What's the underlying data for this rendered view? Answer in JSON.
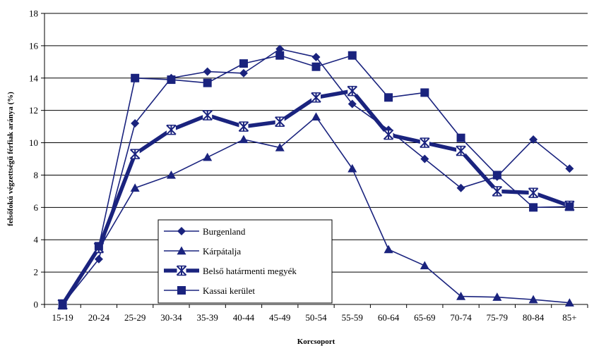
{
  "chart_data": {
    "type": "line",
    "title": "",
    "xlabel": "Korcsoport",
    "ylabel": "felsőfokú végzettségű férfiak aránya (%)",
    "ylim": [
      0,
      18
    ],
    "yticks": [
      0,
      2,
      4,
      6,
      8,
      10,
      12,
      14,
      16,
      18
    ],
    "grid": "horizontal",
    "legend_position": "bottom-left-inside",
    "categories": [
      "15-19",
      "20-24",
      "25-29",
      "30-34",
      "35-39",
      "40-44",
      "45-49",
      "50-54",
      "55-59",
      "60-64",
      "65-69",
      "70-74",
      "75-79",
      "80-84",
      "85+"
    ],
    "series": [
      {
        "name": "Burgenland",
        "marker": "diamond",
        "color": "#1a237e",
        "width": "thin",
        "values": [
          0,
          2.8,
          11.2,
          14.0,
          14.4,
          14.3,
          15.8,
          15.3,
          12.4,
          10.8,
          9.0,
          7.2,
          7.9,
          10.2,
          8.4
        ]
      },
      {
        "name": "Kárpátalja",
        "marker": "triangle",
        "color": "#1a237e",
        "width": "thin",
        "values": [
          0,
          3.4,
          7.2,
          8.0,
          9.1,
          10.2,
          9.7,
          11.6,
          8.4,
          3.4,
          2.4,
          0.5,
          0.45,
          0.3,
          0.1
        ]
      },
      {
        "name": "Belső határmenti megyék",
        "marker": "asterisk",
        "color": "#1a237e",
        "width": "thick",
        "values": [
          0,
          3.5,
          9.3,
          10.8,
          11.7,
          11.0,
          11.3,
          12.8,
          13.2,
          10.5,
          10.0,
          9.5,
          7.0,
          6.9,
          6.1
        ]
      },
      {
        "name": "Kassai kerület",
        "marker": "square",
        "color": "#1a237e",
        "width": "thin",
        "values": [
          0,
          3.6,
          14.0,
          13.9,
          13.7,
          14.9,
          15.4,
          14.7,
          15.4,
          12.8,
          13.1,
          10.3,
          8.0,
          6.0,
          6.05
        ]
      }
    ]
  }
}
